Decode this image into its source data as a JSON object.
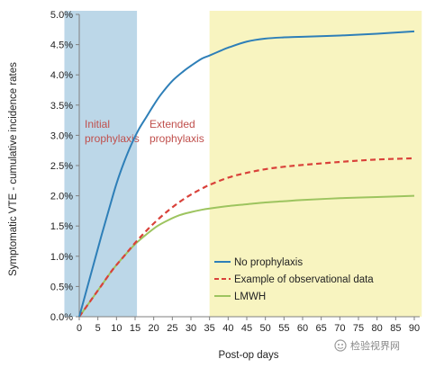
{
  "chart_data": {
    "type": "line",
    "title": "",
    "xlabel": "Post-op days",
    "ylabel": "Symptomatic VTE - cumulative incidence rates",
    "xlim": [
      0,
      90
    ],
    "ylim": [
      0,
      5.0
    ],
    "x_ticks": [
      0,
      5,
      10,
      15,
      20,
      25,
      30,
      35,
      40,
      45,
      50,
      55,
      60,
      65,
      70,
      75,
      80,
      85,
      90
    ],
    "y_ticks": [
      "0.0%",
      "0.5%",
      "1.0%",
      "1.5%",
      "2.0%",
      "2.5%",
      "3.0%",
      "3.5%",
      "4.0%",
      "4.5%",
      "5.0%"
    ],
    "regions": [
      {
        "label_lines": [
          "Initial",
          "prophylaxis"
        ],
        "x_start": -4,
        "x_end": 15.5,
        "color": "#bcd7e8"
      },
      {
        "label_lines": [
          "Extended",
          "prophylaxis"
        ],
        "x_start": 35,
        "x_end": 92,
        "color": "#f8f4c0"
      }
    ],
    "series": [
      {
        "name": "No prophylaxis",
        "color": "#2e7fb8",
        "dash": "none",
        "x": [
          0,
          2,
          4,
          6,
          8,
          10,
          12,
          14,
          16,
          18,
          20,
          22,
          25,
          28,
          30,
          33,
          35,
          38,
          40,
          45,
          50,
          55,
          60,
          70,
          80,
          90
        ],
        "y": [
          0.0,
          0.45,
          0.9,
          1.35,
          1.78,
          2.2,
          2.55,
          2.85,
          3.1,
          3.3,
          3.5,
          3.68,
          3.9,
          4.06,
          4.15,
          4.27,
          4.32,
          4.4,
          4.45,
          4.55,
          4.6,
          4.62,
          4.63,
          4.65,
          4.68,
          4.72
        ]
      },
      {
        "name": "Example of observational data",
        "color": "#d9413a",
        "dash": "6,4",
        "x": [
          0,
          3,
          6,
          9,
          12,
          15,
          18,
          21,
          24,
          27,
          30,
          33,
          35,
          40,
          45,
          50,
          55,
          60,
          70,
          80,
          90
        ],
        "y": [
          0.0,
          0.26,
          0.52,
          0.78,
          1.0,
          1.22,
          1.42,
          1.6,
          1.76,
          1.9,
          2.02,
          2.12,
          2.18,
          2.3,
          2.38,
          2.44,
          2.48,
          2.51,
          2.56,
          2.6,
          2.62
        ]
      },
      {
        "name": "LMWH",
        "color": "#9dc45f",
        "dash": "none",
        "x": [
          0,
          3,
          6,
          9,
          12,
          15,
          18,
          21,
          24,
          27,
          30,
          33,
          35,
          40,
          45,
          50,
          55,
          60,
          70,
          80,
          90
        ],
        "y": [
          0.0,
          0.26,
          0.52,
          0.78,
          1.0,
          1.2,
          1.36,
          1.5,
          1.6,
          1.68,
          1.73,
          1.77,
          1.79,
          1.83,
          1.86,
          1.89,
          1.91,
          1.93,
          1.96,
          1.98,
          2.0
        ]
      }
    ],
    "legend": {
      "position": "bottom-right"
    }
  },
  "watermark": {
    "icon": "wechat-channel-icon",
    "text": "检验视界网"
  }
}
